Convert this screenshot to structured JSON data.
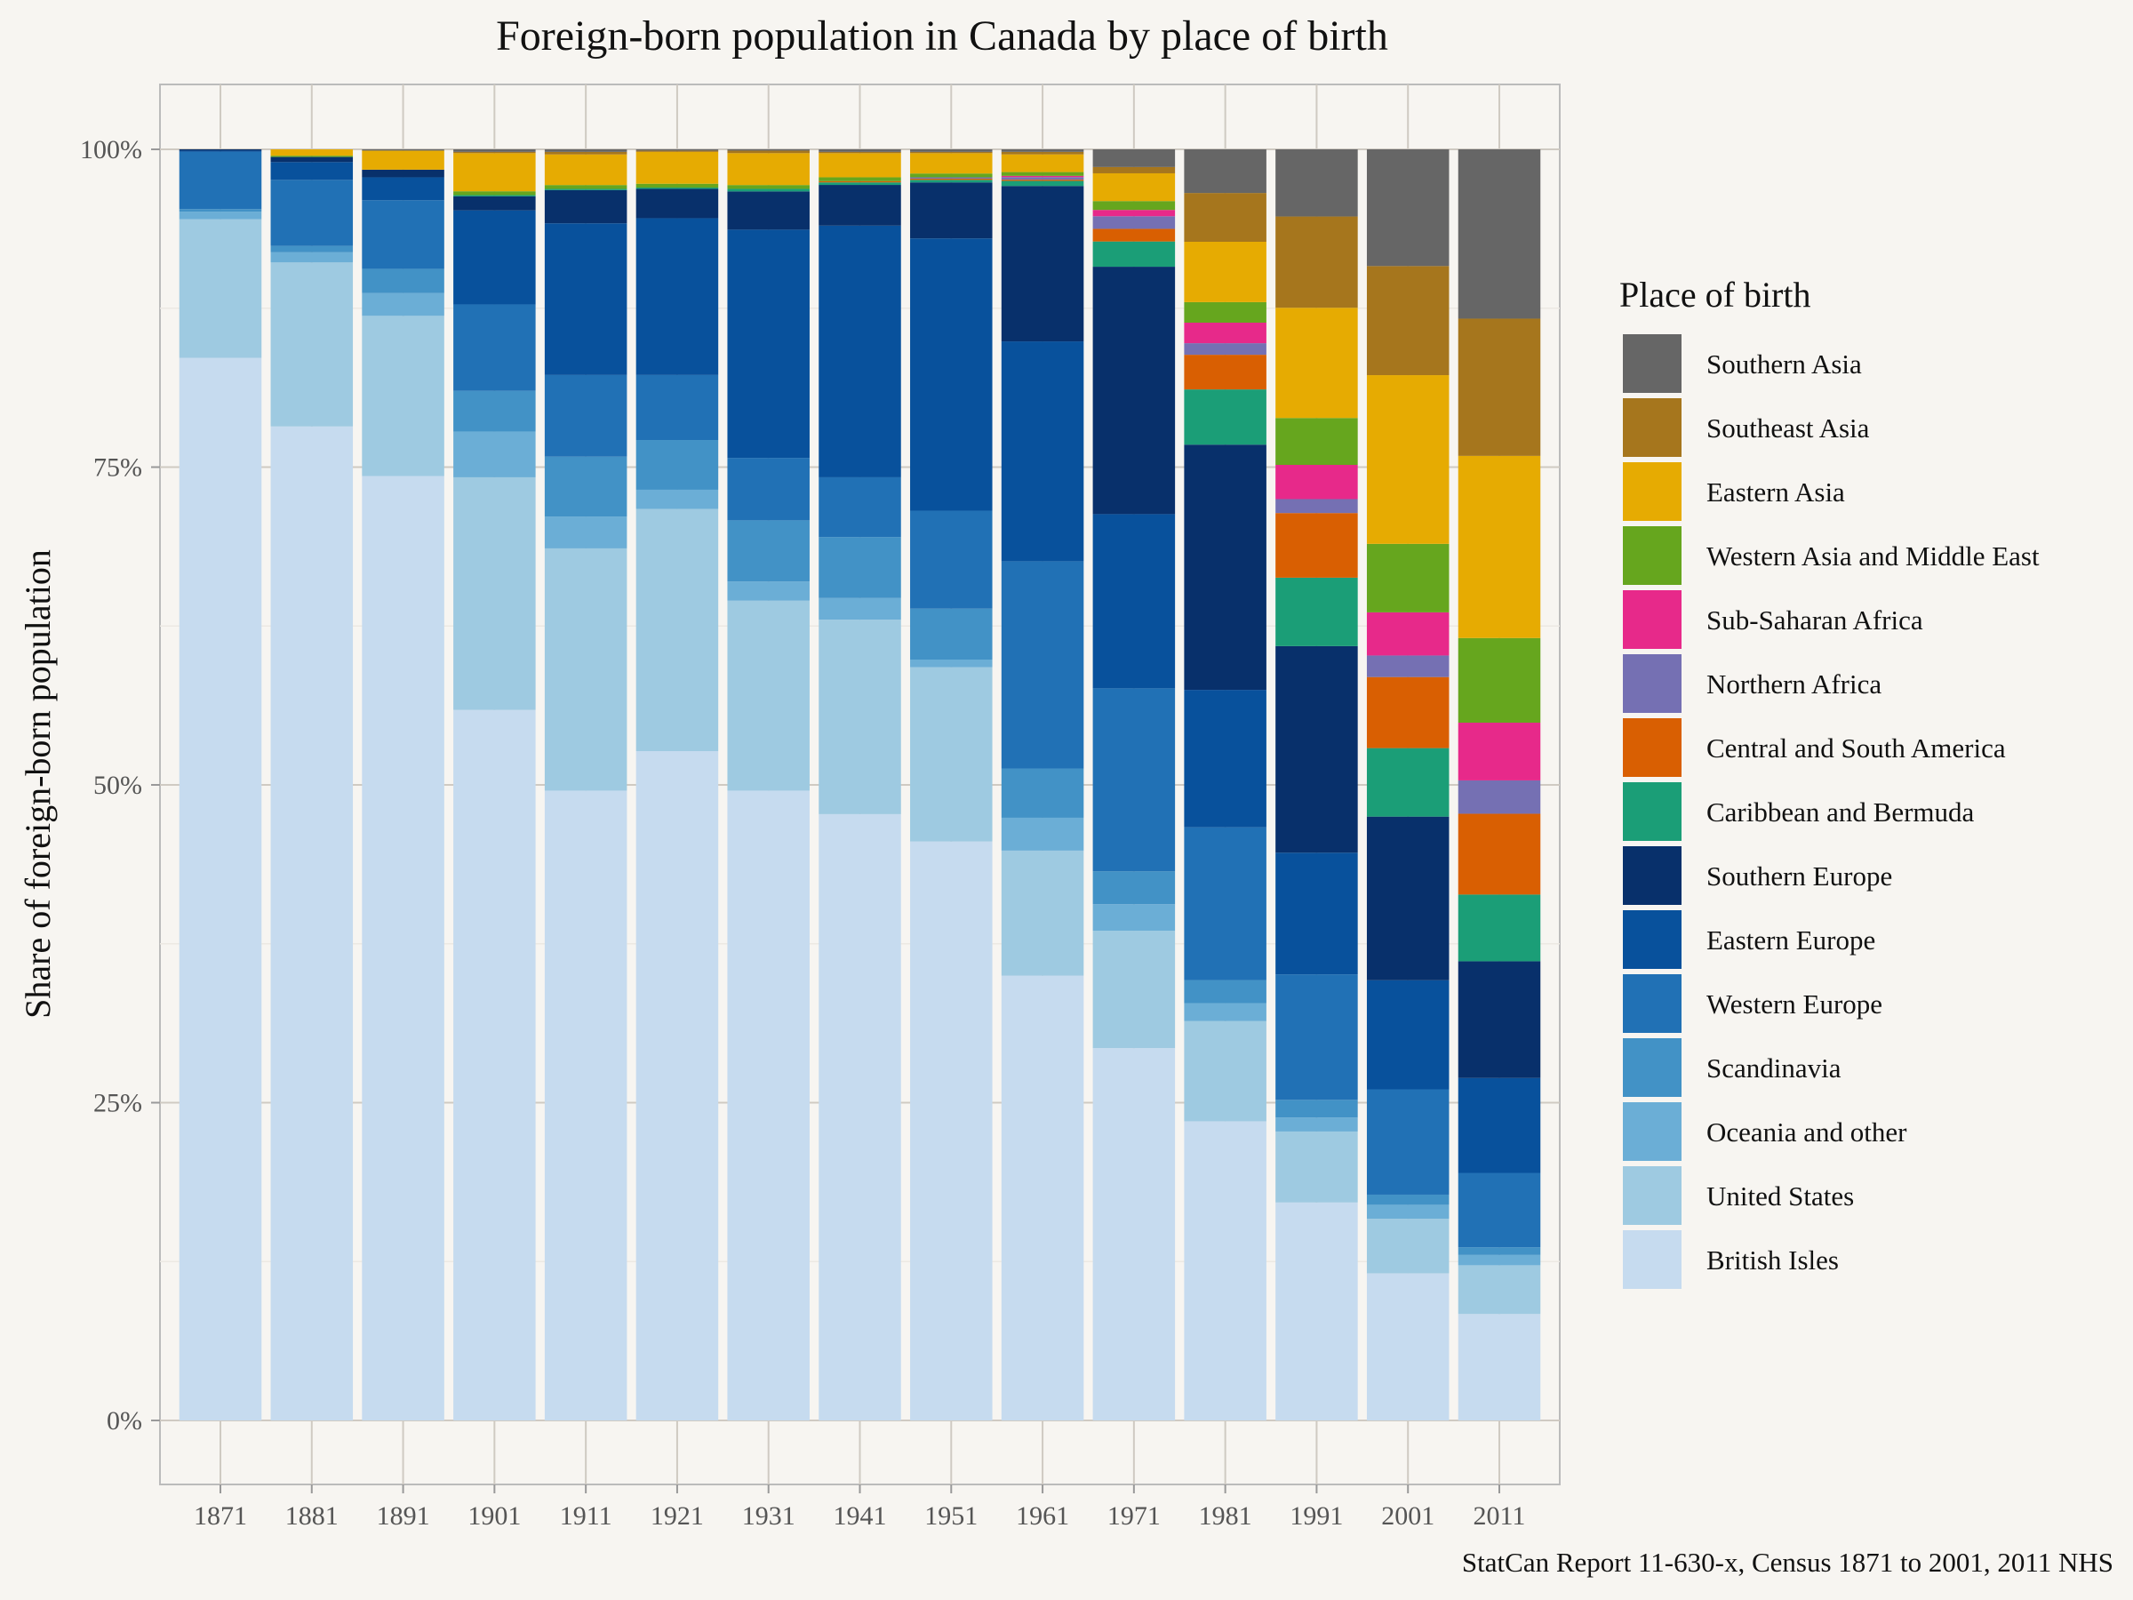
{
  "chart_data": {
    "type": "bar",
    "stacked": true,
    "title": "Foreign-born population in Canada by place of birth",
    "xlabel": "",
    "ylabel": "Share of foreign-born population",
    "caption": "StatCan Report 11-630-x, Census 1871 to 2001, 2011 NHS",
    "legend_title": "Place of birth",
    "legend_position": "right",
    "ylim": [
      0,
      100
    ],
    "y_ticks": [
      0,
      25,
      50,
      75,
      100
    ],
    "y_tick_labels": [
      "0%",
      "25%",
      "50%",
      "75%",
      "100%"
    ],
    "grid": true,
    "categories": [
      "1871",
      "1881",
      "1891",
      "1901",
      "1911",
      "1921",
      "1931",
      "1941",
      "1951",
      "1961",
      "1971",
      "1981",
      "1991",
      "2001",
      "2011"
    ],
    "series": [
      {
        "name": "British Isles",
        "color": "#c6dbef",
        "values": [
          83.6,
          78.2,
          74.3,
          55.9,
          49.4,
          52.5,
          49.4,
          47.7,
          45.5,
          35.2,
          29.5,
          23.3,
          17.2,
          11.6,
          8.3
        ]
      },
      {
        "name": "United States",
        "color": "#9ecae1",
        "values": [
          10.9,
          12.9,
          12.6,
          18.3,
          19.0,
          19.0,
          14.9,
          15.3,
          13.7,
          9.9,
          9.3,
          7.8,
          5.6,
          4.3,
          3.8
        ]
      },
      {
        "name": "Oceania and other",
        "color": "#6baed6",
        "values": [
          0.6,
          0.8,
          1.8,
          3.6,
          2.5,
          1.5,
          1.5,
          1.7,
          0.6,
          2.6,
          2.1,
          1.4,
          1.1,
          1.1,
          0.8
        ]
      },
      {
        "name": "Scandinavia",
        "color": "#4292c6",
        "values": [
          0.2,
          0.5,
          1.9,
          3.2,
          4.7,
          3.9,
          4.8,
          4.8,
          4.0,
          3.9,
          2.6,
          1.8,
          1.4,
          0.8,
          0.6
        ]
      },
      {
        "name": "Western Europe",
        "color": "#2171b5",
        "values": [
          4.5,
          5.2,
          5.4,
          6.8,
          6.4,
          5.1,
          4.9,
          4.7,
          7.7,
          16.4,
          14.5,
          11.9,
          9.9,
          8.3,
          5.8
        ]
      },
      {
        "name": "Eastern Europe",
        "color": "#08519c",
        "values": [
          0.1,
          1.4,
          1.8,
          7.4,
          11.9,
          12.3,
          17.9,
          19.8,
          21.4,
          17.4,
          13.8,
          10.7,
          9.6,
          8.6,
          7.4
        ]
      },
      {
        "name": "Southern Europe",
        "color": "#08306b",
        "values": [
          0.1,
          0.4,
          0.6,
          1.1,
          2.6,
          2.3,
          3.0,
          3.2,
          4.4,
          12.3,
          19.6,
          19.1,
          16.3,
          12.9,
          9.1
        ]
      },
      {
        "name": "Caribbean and Bermuda",
        "color": "#1b9e77",
        "values": [
          0.0,
          0.0,
          0.0,
          0.1,
          0.1,
          0.1,
          0.2,
          0.2,
          0.2,
          0.4,
          2.0,
          4.3,
          5.4,
          5.4,
          5.2
        ]
      },
      {
        "name": "Central and South America",
        "color": "#d95f02",
        "values": [
          0.0,
          0.0,
          0.0,
          0.0,
          0.0,
          0.0,
          0.0,
          0.1,
          0.1,
          0.1,
          1.0,
          2.7,
          5.1,
          5.6,
          6.3
        ]
      },
      {
        "name": "Northern Africa",
        "color": "#7570b3",
        "values": [
          0.0,
          0.0,
          0.0,
          0.0,
          0.0,
          0.0,
          0.0,
          0.0,
          0.1,
          0.2,
          1.0,
          0.9,
          1.1,
          1.7,
          2.6
        ]
      },
      {
        "name": "Sub-Saharan Africa",
        "color": "#e7298a",
        "values": [
          0.0,
          0.0,
          0.0,
          0.0,
          0.0,
          0.0,
          0.0,
          0.0,
          0.0,
          0.1,
          0.5,
          1.6,
          2.7,
          3.4,
          4.5
        ]
      },
      {
        "name": "Western Asia and Middle East",
        "color": "#66a61e",
        "values": [
          0.0,
          0.1,
          0.0,
          0.3,
          0.3,
          0.3,
          0.3,
          0.3,
          0.3,
          0.3,
          0.7,
          1.6,
          3.7,
          5.4,
          6.6
        ]
      },
      {
        "name": "Eastern Asia",
        "color": "#e6ab02",
        "values": [
          0.0,
          0.5,
          1.5,
          3.0,
          2.4,
          2.5,
          2.5,
          1.9,
          1.6,
          1.4,
          2.2,
          4.7,
          8.7,
          13.3,
          14.2
        ]
      },
      {
        "name": "Southeast Asia",
        "color": "#a6761d",
        "values": [
          0.0,
          0.0,
          0.0,
          0.1,
          0.2,
          0.1,
          0.2,
          0.1,
          0.1,
          0.2,
          0.5,
          3.8,
          7.2,
          8.6,
          10.7
        ]
      },
      {
        "name": "Southern Asia",
        "color": "#666666",
        "values": [
          0.0,
          0.0,
          0.1,
          0.2,
          0.2,
          0.1,
          0.1,
          0.2,
          0.2,
          0.2,
          1.4,
          3.4,
          5.3,
          9.2,
          13.2
        ]
      }
    ]
  }
}
